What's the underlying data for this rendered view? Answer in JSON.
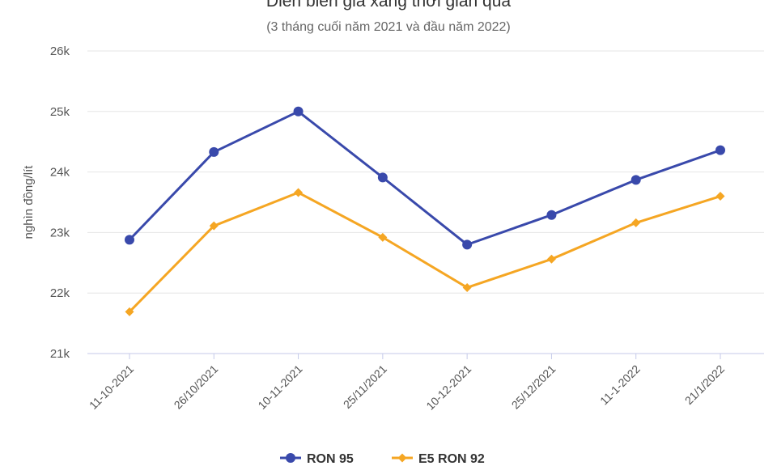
{
  "chart_data": {
    "type": "line",
    "title": "Diễn biến giá xăng thời gian qua",
    "subtitle": "(3 tháng cuối năm 2021 và đầu năm 2022)",
    "xlabel": "",
    "ylabel": "nghìn đồng/lít",
    "ylim": [
      21000,
      26000
    ],
    "yticks": [
      {
        "value": 21000,
        "label": "21k"
      },
      {
        "value": 22000,
        "label": "22k"
      },
      {
        "value": 23000,
        "label": "23k"
      },
      {
        "value": 24000,
        "label": "24k"
      },
      {
        "value": 25000,
        "label": "25k"
      },
      {
        "value": 26000,
        "label": "26k"
      }
    ],
    "grid": true,
    "legend": "bottom-center",
    "categories": [
      "11-10-2021",
      "26/10/2021",
      "10-11-2021",
      "25/11/2021",
      "10-12-2021",
      "25/12/2021",
      "11-1-2022",
      "21/1/2022"
    ],
    "series": [
      {
        "name": "RON 95",
        "color": "#3949ab",
        "marker": "circle",
        "values": [
          22880,
          24330,
          25000,
          23910,
          22800,
          23290,
          23870,
          24360
        ]
      },
      {
        "name": "E5 RON 92",
        "color": "#f5a623",
        "marker": "diamond",
        "values": [
          21690,
          23110,
          23660,
          22920,
          22090,
          22560,
          23160,
          23600
        ]
      }
    ]
  }
}
